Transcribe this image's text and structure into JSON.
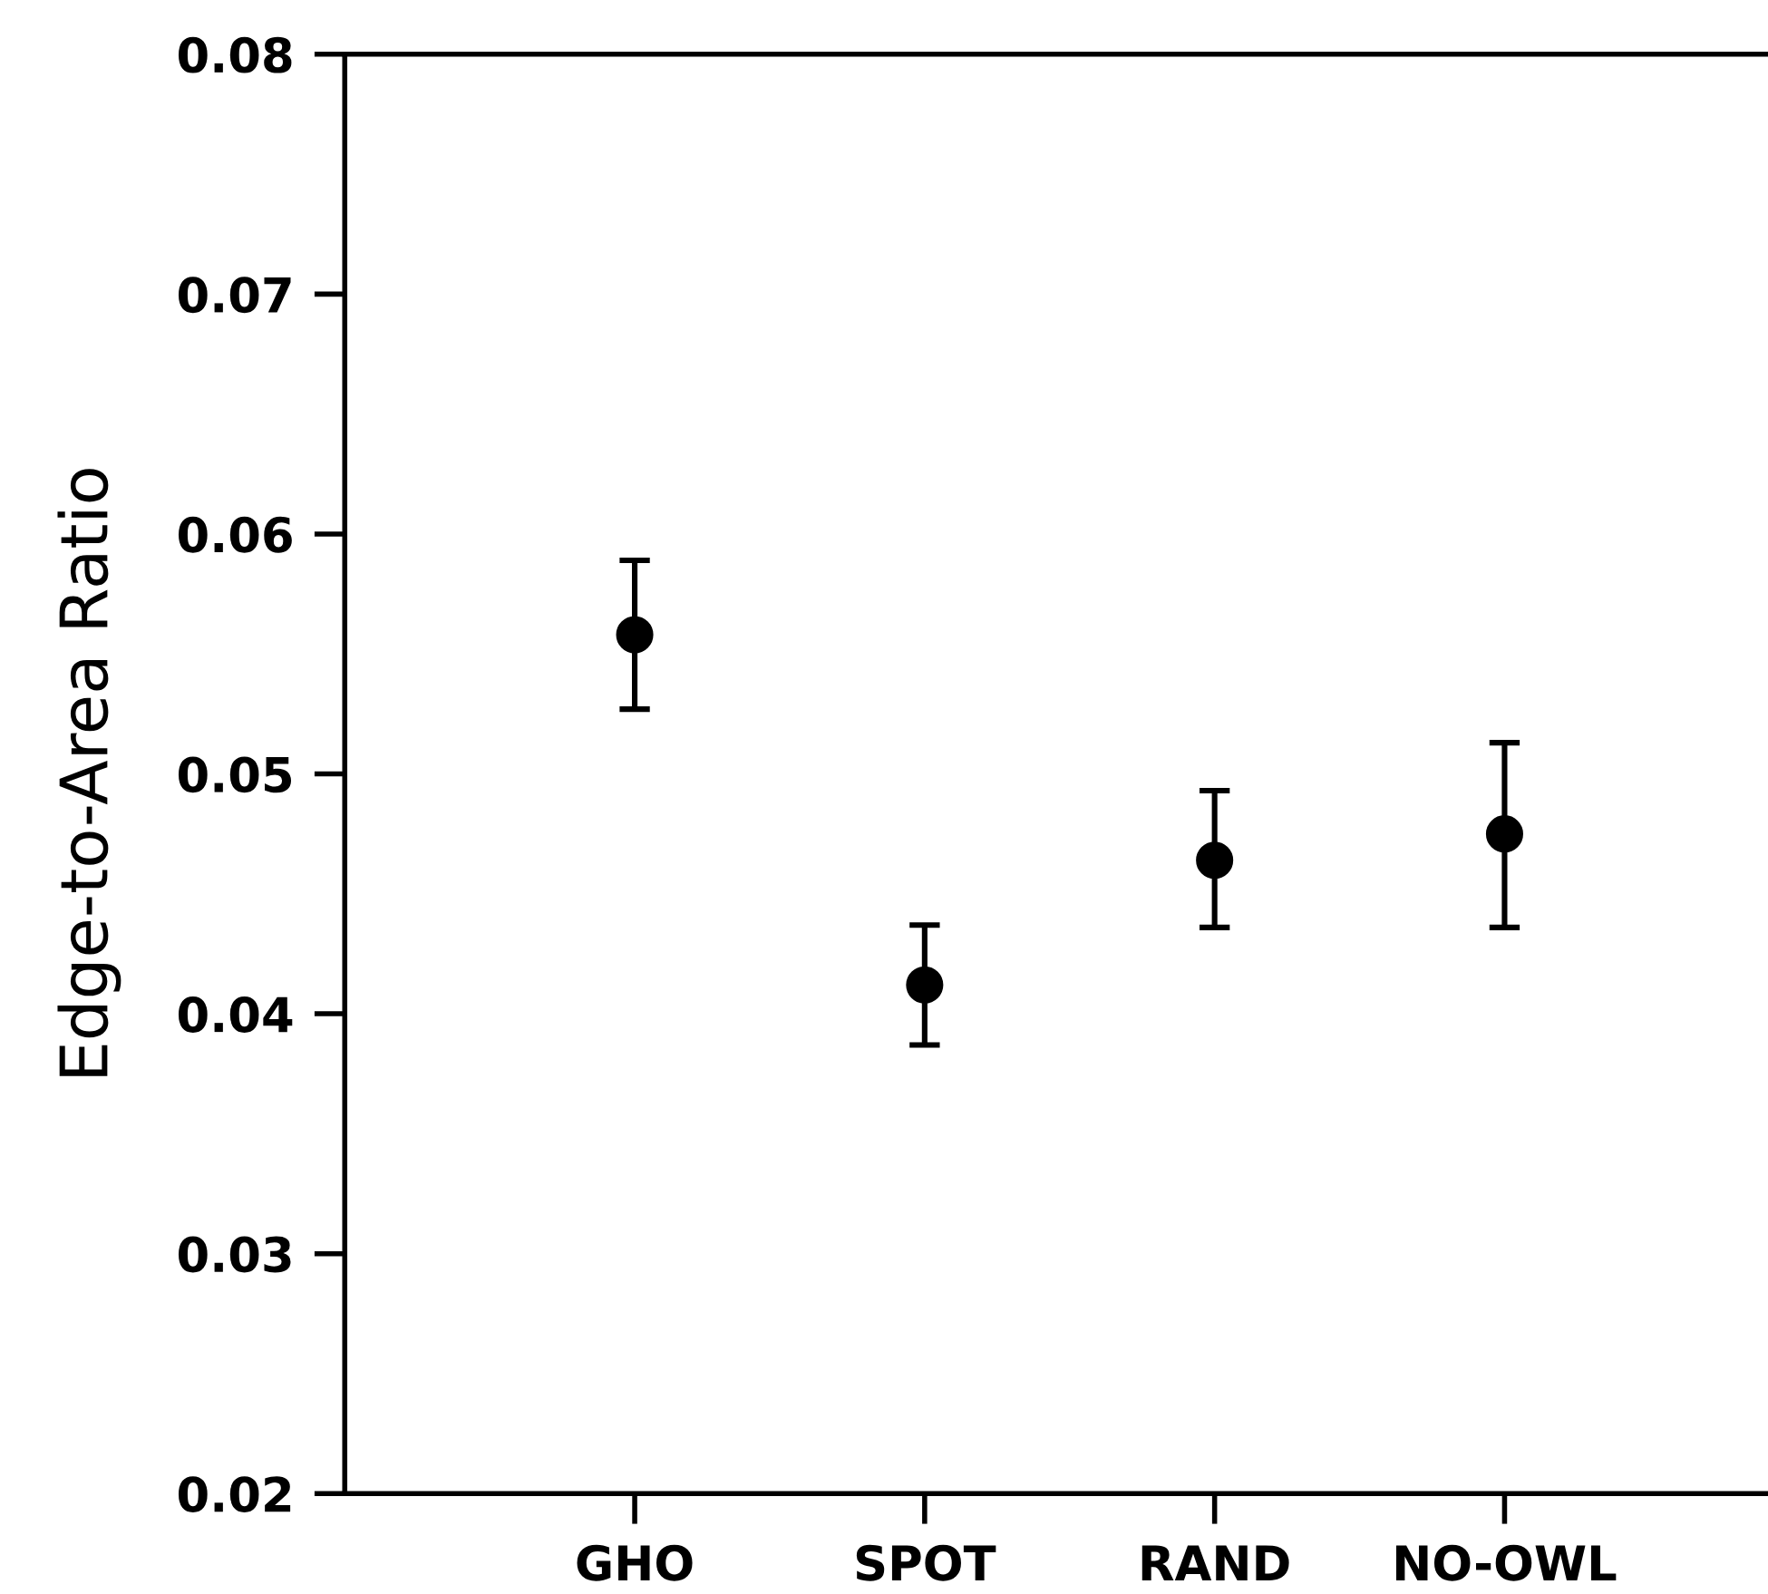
{
  "chart_data": {
    "type": "scatter",
    "ylabel": "Edge-to-Area Ratio",
    "categories": [
      "GHO",
      "SPOT",
      "RAND",
      "NO-OWL"
    ],
    "values": [
      0.0558,
      0.0412,
      0.0464,
      0.0475
    ],
    "errors": [
      [
        0.0527,
        0.0589
      ],
      [
        0.0387,
        0.0437
      ],
      [
        0.0436,
        0.0493
      ],
      [
        0.0436,
        0.0513
      ]
    ],
    "color": "#000000",
    "marker": "circle",
    "ylim": [
      0.02,
      0.08
    ],
    "yticks": [
      0.02,
      0.03,
      0.04,
      0.05,
      0.06,
      0.07,
      0.08
    ]
  }
}
